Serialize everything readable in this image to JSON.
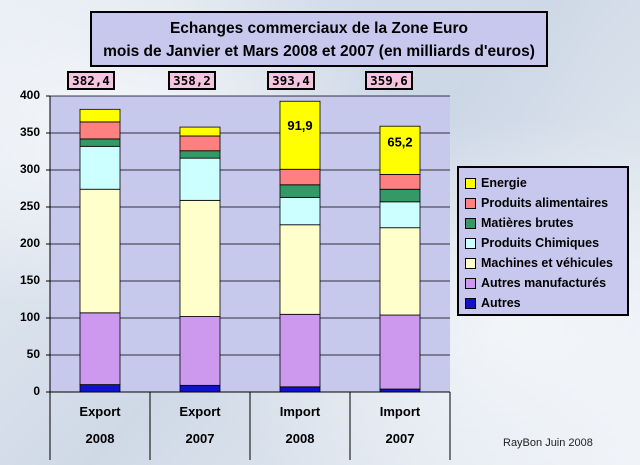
{
  "title_line1": "Echanges commerciaux de la Zone Euro",
  "title_line2": "mois de Janvier et Mars 2008 et 2007 (en milliards d'euros)",
  "totals": [
    "382,4",
    "358,2",
    "393,4",
    "359,6"
  ],
  "credit": "RayBon Juin 2008",
  "chart_data": {
    "type": "bar",
    "stacked": true,
    "categories": [
      "Export 2008",
      "Export 2007",
      "Import 2008",
      "Import 2007"
    ],
    "category_lines": [
      [
        "Export",
        "2008"
      ],
      [
        "Export",
        "2007"
      ],
      [
        "Import",
        "2008"
      ],
      [
        "Import",
        "2007"
      ]
    ],
    "ylim": [
      0,
      400
    ],
    "yticks": [
      0,
      50,
      100,
      150,
      200,
      250,
      300,
      350,
      400
    ],
    "legend_position": "right",
    "grid": true,
    "series": [
      {
        "name": "Autres",
        "color": "#1111cc",
        "values": [
          10,
          9,
          7,
          4
        ]
      },
      {
        "name": "Autres manufacturés",
        "color": "#cc99ee",
        "values": [
          97,
          93,
          98,
          100
        ]
      },
      {
        "name": "Machines et véhicules",
        "color": "#ffffcc",
        "values": [
          167,
          157,
          121,
          118
        ]
      },
      {
        "name": "Produits Chimiques",
        "color": "#ccffff",
        "values": [
          58,
          57,
          37,
          35
        ]
      },
      {
        "name": "Matières brutes",
        "color": "#339966",
        "values": [
          10,
          10,
          17,
          17
        ]
      },
      {
        "name": "Produits alimentaires",
        "color": "#ff8080",
        "values": [
          23,
          20,
          21,
          20
        ]
      },
      {
        "name": "Energie",
        "color": "#ffff00",
        "values": [
          17,
          12,
          91.9,
          65.2
        ]
      }
    ],
    "data_labels": [
      "",
      "",
      "91,9",
      "65,2"
    ]
  }
}
